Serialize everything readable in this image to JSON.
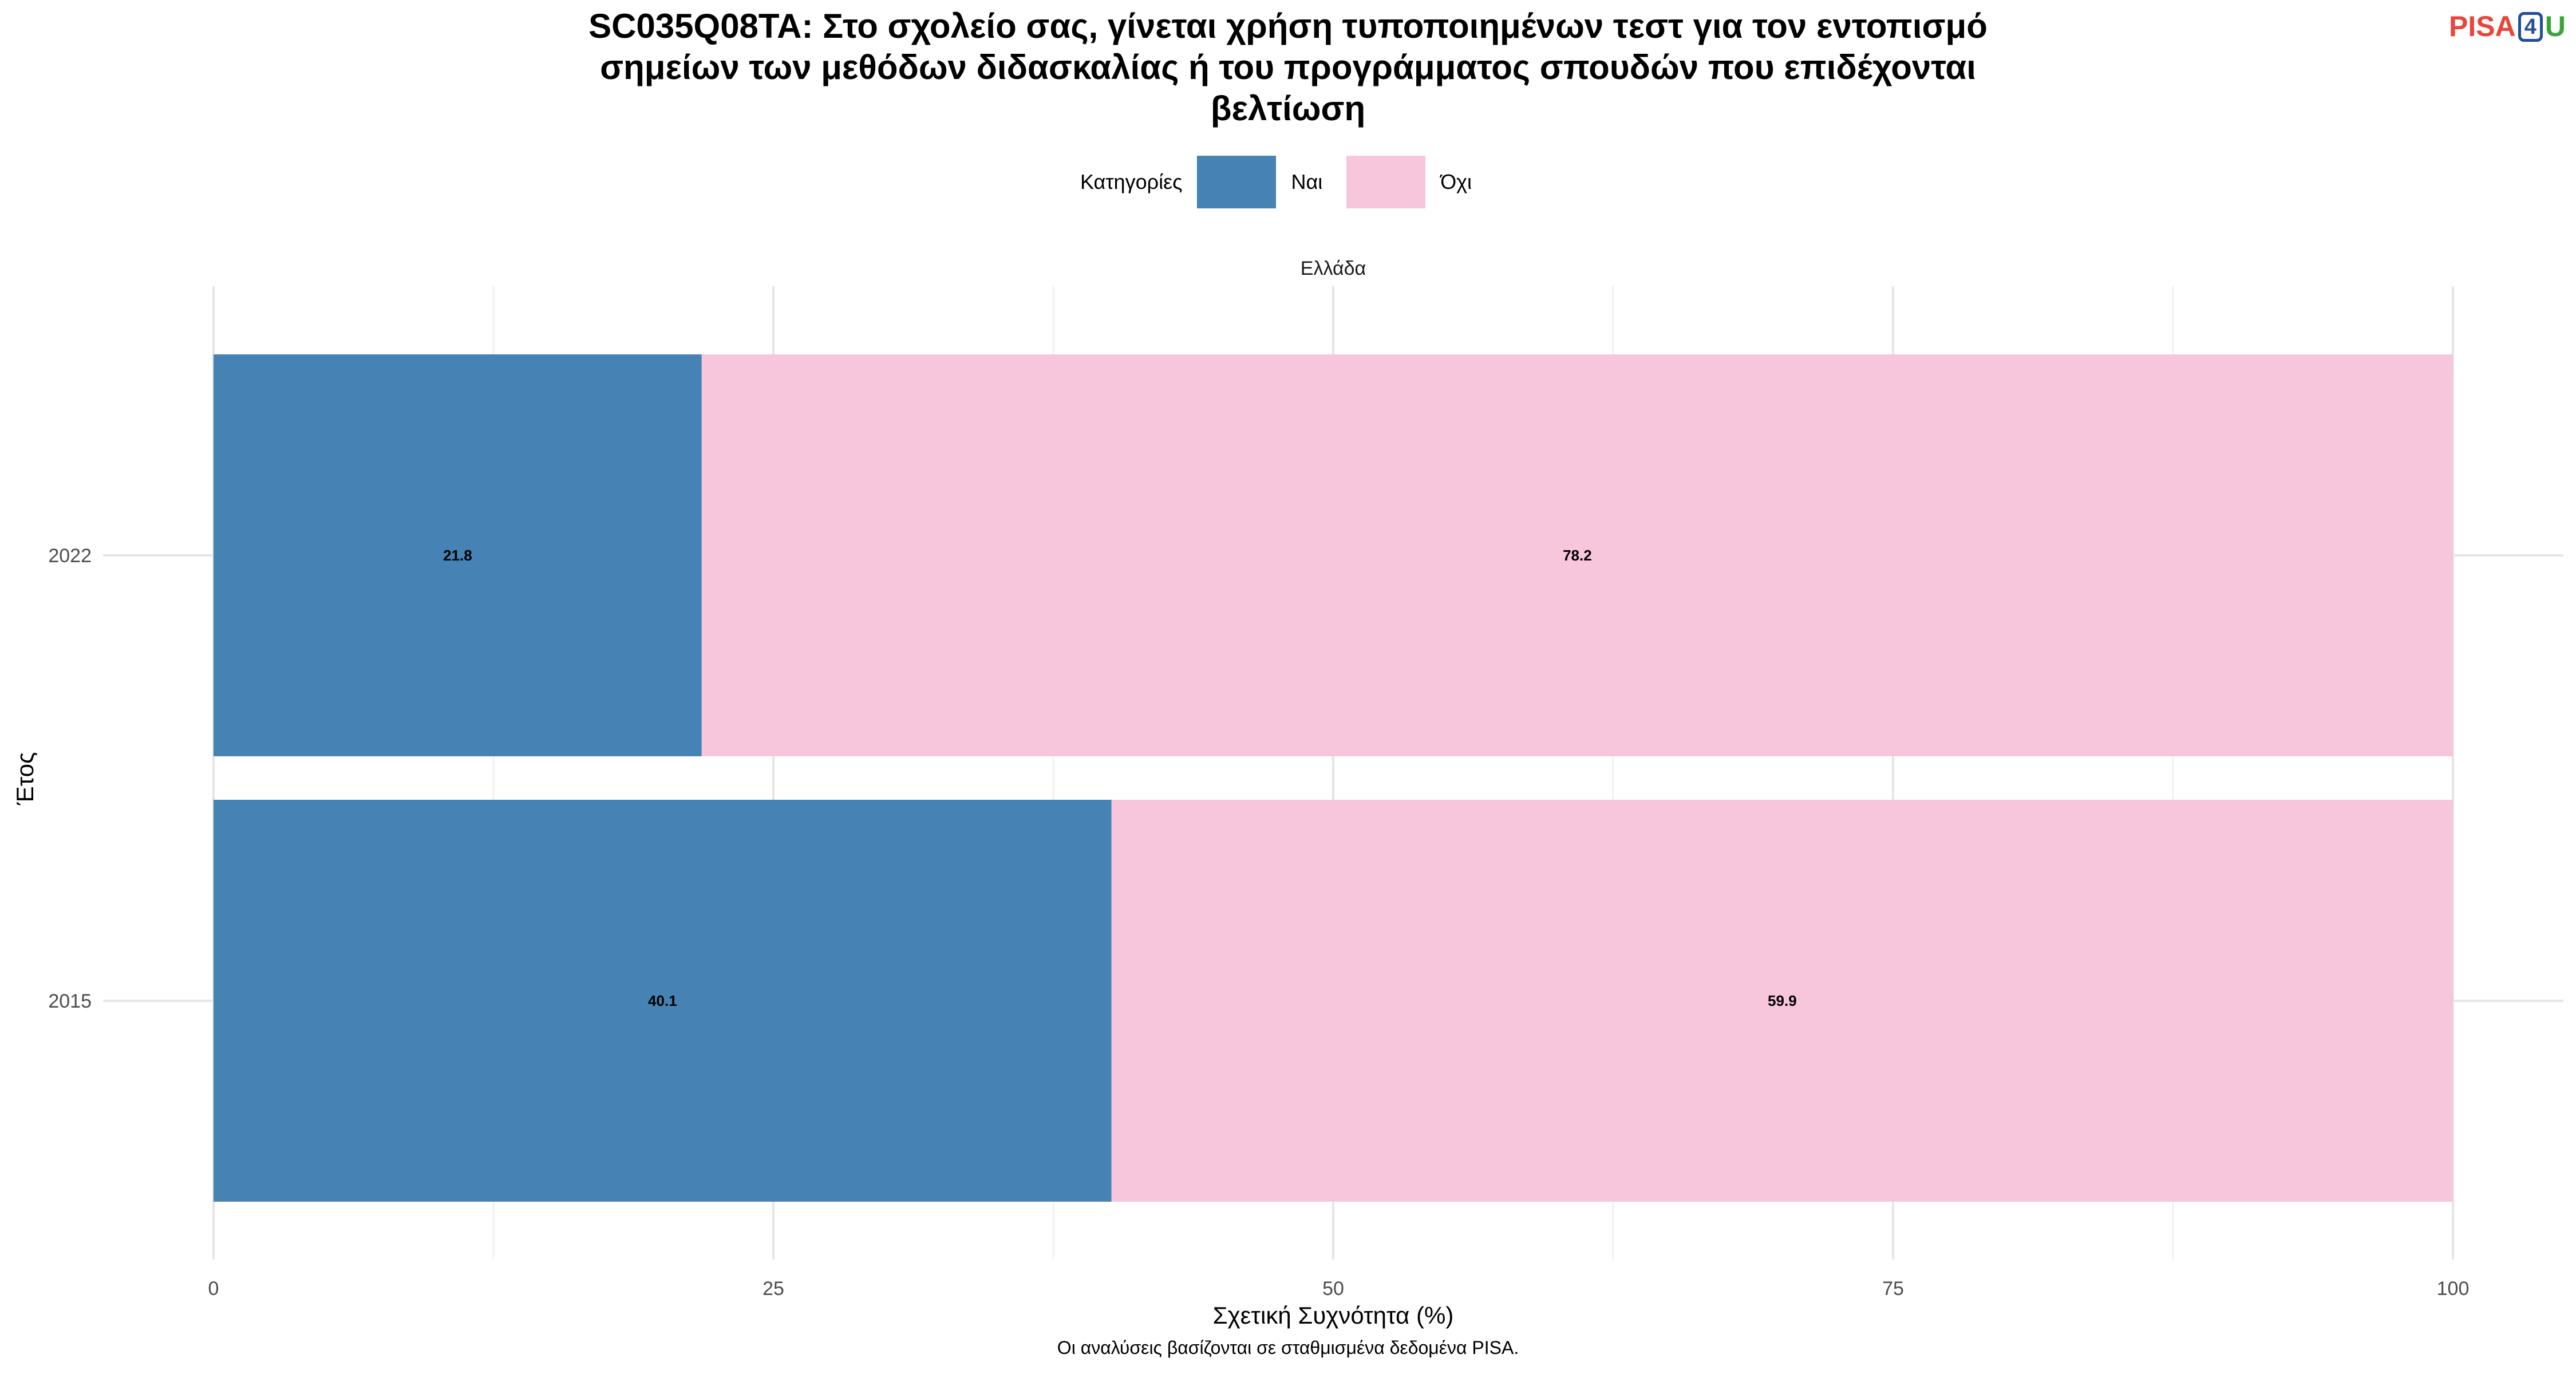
{
  "title_lines": [
    "SC035Q08TA: Στο σχολείο σας, γίνεται χρήση τυποποιημένων τεστ για τον εντοπισμό",
    "σημείων των μεθόδων διδασκαλίας ή του προγράμματος σπουδών που επιδέχονται",
    "βελτίωση"
  ],
  "logo": {
    "pisa": "PISA",
    "four": "4",
    "u": "U"
  },
  "legend": {
    "title": "Κατηγορίες",
    "items": [
      {
        "label": "Ναι",
        "color": "#4682b4"
      },
      {
        "label": "Όχι",
        "color": "#f7c6dc"
      }
    ],
    "position": "top"
  },
  "footer_note": "Οι αναλύσεις βασίζονται σε σταθμισμένα δεδομένα PISA.",
  "chart_data": {
    "type": "bar",
    "orientation": "horizontal",
    "stacked": true,
    "facet": "Ελλάδα",
    "categories": [
      "2022",
      "2015"
    ],
    "series": [
      {
        "name": "Ναι",
        "values": [
          21.8,
          40.1
        ],
        "color": "#4682b4"
      },
      {
        "name": "Όχι",
        "values": [
          78.2,
          59.9
        ],
        "color": "#f7c6dc"
      }
    ],
    "xlabel": "Σχετική Συχνότητα (%)",
    "ylabel": "Έτος",
    "xlim": [
      0,
      100
    ],
    "xticks": [
      0,
      25,
      50,
      75,
      100
    ],
    "grid": true
  }
}
